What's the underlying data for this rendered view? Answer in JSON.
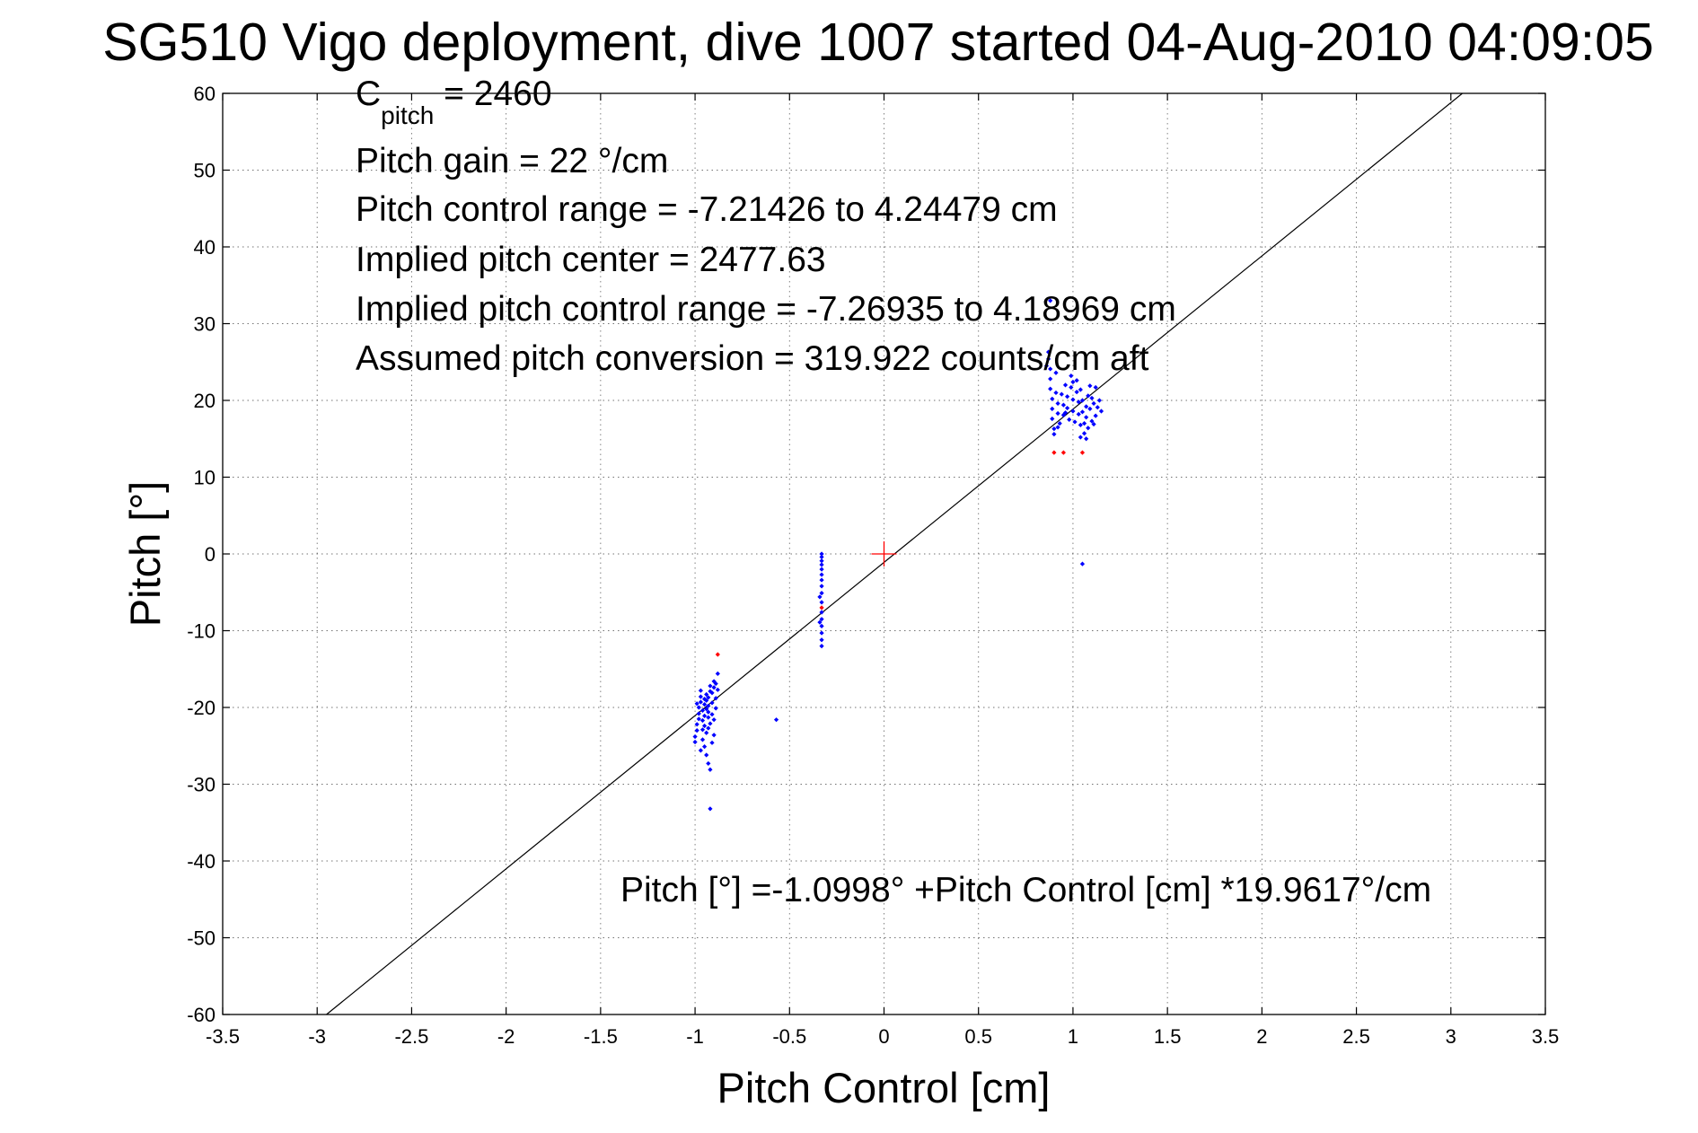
{
  "chart_data": {
    "type": "scatter",
    "title": "SG510 Vigo deployment, dive 1007 started 04-Aug-2010 04:09:05",
    "xlabel": "Pitch Control [cm]",
    "ylabel": "Pitch [°]",
    "xlim": [
      -3.5,
      3.5
    ],
    "ylim": [
      -60,
      60
    ],
    "xticks": [
      -3.5,
      -3,
      -2.5,
      -2,
      -1.5,
      -1,
      -0.5,
      0,
      0.5,
      1,
      1.5,
      2,
      2.5,
      3,
      3.5
    ],
    "xtick_labels": [
      "-3.5",
      "-3",
      "-2.5",
      "-2",
      "-1.5",
      "-1",
      "-0.5",
      "0",
      "0.5",
      "1",
      "1.5",
      "2",
      "2.5",
      "3",
      "3.5"
    ],
    "yticks": [
      -60,
      -50,
      -40,
      -30,
      -20,
      -10,
      0,
      10,
      20,
      30,
      40,
      50,
      60
    ],
    "ytick_labels": [
      "-60",
      "-50",
      "-40",
      "-30",
      "-20",
      "-10",
      "0",
      "10",
      "20",
      "30",
      "40",
      "50",
      "60"
    ],
    "grid": true,
    "colors": {
      "main_points": "#0000ff",
      "outlier_points": "#ff0000",
      "fit_line": "#000000",
      "center_marker": "#ff0000"
    },
    "annotations": {
      "c_pitch_main": "C",
      "c_pitch_sub": "pitch",
      "c_pitch_value": " = 2460",
      "pitch_gain": "Pitch gain = 22 °/cm",
      "pitch_control_range": "Pitch control range = -7.21426 to 4.24479 cm",
      "implied_center": "Implied pitch center = 2477.63",
      "implied_range": "Implied pitch control range = -7.26935 to 4.18969 cm",
      "assumed_conversion": "Assumed pitch conversion = 319.922 counts/cm aft",
      "fit_equation": "Pitch [°] =-1.0998° +Pitch Control [cm] *19.9617°/cm"
    },
    "fit_line": {
      "intercept": -1.0998,
      "slope": 19.9617,
      "x_range": [
        -2.95,
        3.06
      ]
    },
    "center_marker": {
      "x": 0,
      "y": 0,
      "shape": "plus"
    },
    "series": [
      {
        "color": "#0000ff",
        "points": [
          [
            -1.0,
            -24.5
          ],
          [
            -1.0,
            -23.8
          ],
          [
            -0.99,
            -23.0
          ],
          [
            -0.99,
            -22.2
          ],
          [
            -0.98,
            -21.5
          ],
          [
            -0.98,
            -20.8
          ],
          [
            -0.98,
            -20.0
          ],
          [
            -0.97,
            -19.3
          ],
          [
            -0.97,
            -18.6
          ],
          [
            -0.97,
            -17.8
          ],
          [
            -0.96,
            -24.2
          ],
          [
            -0.96,
            -22.9
          ],
          [
            -0.96,
            -21.7
          ],
          [
            -0.96,
            -20.4
          ],
          [
            -0.95,
            -19.6
          ],
          [
            -0.95,
            -18.9
          ],
          [
            -0.95,
            -21.1
          ],
          [
            -0.95,
            -22.4
          ],
          [
            -0.94,
            -20.2
          ],
          [
            -0.94,
            -19.1
          ],
          [
            -0.94,
            -18.3
          ],
          [
            -0.94,
            -23.3
          ],
          [
            -0.93,
            -21.3
          ],
          [
            -0.93,
            -20.6
          ],
          [
            -0.93,
            -19.8
          ],
          [
            -0.93,
            -18.7
          ],
          [
            -0.92,
            -17.9
          ],
          [
            -0.92,
            -17.2
          ],
          [
            -0.92,
            -22.1
          ],
          [
            -0.91,
            -20.9
          ],
          [
            -0.91,
            -19.4
          ],
          [
            -0.91,
            -18.1
          ],
          [
            -0.9,
            -17.4
          ],
          [
            -0.9,
            -16.6
          ],
          [
            -0.9,
            -21.6
          ],
          [
            -0.89,
            -20.1
          ],
          [
            -0.89,
            -18.8
          ],
          [
            -0.89,
            -16.9
          ],
          [
            -0.88,
            -15.6
          ],
          [
            -0.88,
            -17.7
          ],
          [
            -0.95,
            -25.1
          ],
          [
            -0.94,
            -26.2
          ],
          [
            -0.93,
            -27.3
          ],
          [
            -0.92,
            -28.1
          ],
          [
            -0.9,
            -23.6
          ],
          [
            -0.91,
            -24.6
          ],
          [
            -0.92,
            -33.2
          ],
          [
            -0.97,
            -25.6
          ],
          [
            -0.99,
            -19.5
          ],
          [
            -0.93,
            -22.7
          ],
          [
            -0.57,
            -21.6
          ],
          [
            -0.33,
            0.0
          ],
          [
            -0.33,
            -0.4
          ],
          [
            -0.33,
            -0.9
          ],
          [
            -0.33,
            -1.4
          ],
          [
            -0.33,
            -2.0
          ],
          [
            -0.33,
            -2.7
          ],
          [
            -0.33,
            -3.4
          ],
          [
            -0.33,
            -4.2
          ],
          [
            -0.33,
            -5.1
          ],
          [
            -0.33,
            -6.3
          ],
          [
            -0.33,
            -7.6
          ],
          [
            -0.33,
            -8.5
          ],
          [
            -0.33,
            -9.4
          ],
          [
            -0.33,
            -10.3
          ],
          [
            -0.33,
            -11.2
          ],
          [
            -0.34,
            -5.6
          ],
          [
            -0.34,
            -8.9
          ],
          [
            -0.33,
            -12.0
          ],
          [
            0.87,
            26.3
          ],
          [
            0.87,
            25.4
          ],
          [
            0.88,
            24.1
          ],
          [
            0.88,
            22.8
          ],
          [
            0.88,
            21.5
          ],
          [
            0.89,
            20.2
          ],
          [
            0.89,
            18.9
          ],
          [
            0.89,
            17.6
          ],
          [
            0.9,
            16.3
          ],
          [
            0.9,
            15.6
          ],
          [
            0.91,
            23.6
          ],
          [
            0.91,
            21.0
          ],
          [
            0.92,
            19.6
          ],
          [
            0.92,
            18.3
          ],
          [
            0.93,
            17.0
          ],
          [
            0.94,
            20.8
          ],
          [
            0.95,
            19.4
          ],
          [
            0.95,
            18.1
          ],
          [
            0.96,
            22.0
          ],
          [
            0.97,
            20.5
          ],
          [
            0.97,
            19.0
          ],
          [
            0.98,
            17.5
          ],
          [
            0.99,
            23.2
          ],
          [
            0.99,
            21.7
          ],
          [
            1.0,
            20.1
          ],
          [
            1.0,
            18.6
          ],
          [
            1.01,
            17.2
          ],
          [
            1.02,
            22.6
          ],
          [
            1.02,
            21.1
          ],
          [
            1.03,
            19.8
          ],
          [
            1.03,
            18.2
          ],
          [
            1.04,
            16.8
          ],
          [
            1.04,
            21.4
          ],
          [
            1.05,
            20.0
          ],
          [
            1.05,
            18.5
          ],
          [
            1.06,
            17.0
          ],
          [
            1.06,
            15.7
          ],
          [
            1.07,
            19.2
          ],
          [
            1.07,
            17.8
          ],
          [
            1.08,
            20.6
          ],
          [
            1.08,
            16.4
          ],
          [
            1.09,
            18.9
          ],
          [
            1.1,
            20.3
          ],
          [
            1.1,
            17.3
          ],
          [
            1.11,
            19.6
          ],
          [
            1.12,
            18.0
          ],
          [
            1.12,
            21.7
          ],
          [
            1.13,
            19.1
          ],
          [
            1.14,
            20.0
          ],
          [
            1.15,
            18.6
          ],
          [
            0.88,
            33.0
          ],
          [
            1.04,
            15.2
          ],
          [
            1.07,
            15.0
          ],
          [
            1.05,
            -1.3
          ],
          [
            0.86,
            24.5
          ],
          [
            0.92,
            16.5
          ],
          [
            1.0,
            22.4
          ],
          [
            1.09,
            21.9
          ],
          [
            0.96,
            18.4
          ],
          [
            1.11,
            16.9
          ]
        ]
      },
      {
        "color": "#ff0000",
        "points": [
          [
            -0.88,
            -13.1
          ],
          [
            -0.33,
            -7.0
          ],
          [
            0.9,
            13.2
          ],
          [
            0.95,
            13.2
          ],
          [
            1.05,
            13.2
          ]
        ]
      }
    ]
  }
}
